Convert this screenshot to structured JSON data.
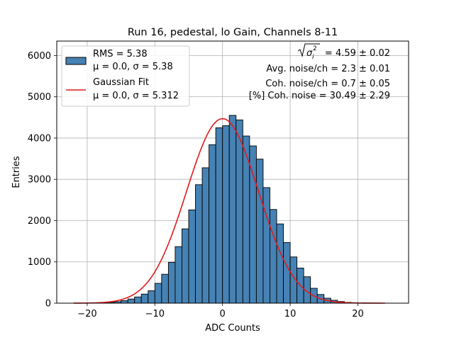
{
  "chart_data": {
    "type": "bar",
    "title": "Run 16, pedestal, lo Gain, Channels 8-11",
    "xlabel": "ADC Counts",
    "ylabel": "Entries",
    "xlim": [
      -24.5,
      27.5
    ],
    "ylim": [
      0,
      6350
    ],
    "xticks": [
      -20,
      -10,
      0,
      10,
      20
    ],
    "xtick_labels": [
      "−20",
      "−10",
      "0",
      "10",
      "20"
    ],
    "yticks": [
      0,
      1000,
      2000,
      3000,
      4000,
      5000,
      6000
    ],
    "ytick_labels": [
      "0",
      "1000",
      "2000",
      "3000",
      "4000",
      "5000",
      "6000"
    ],
    "grid": true,
    "legend_position": "top-left",
    "colors": {
      "histogram": "#4682b4",
      "edge": "#000000",
      "fit": "#e31a1c",
      "grid": "#b0b0b0"
    },
    "histogram": {
      "name_line1": "RMS = 5.38",
      "name_line2": "μ = 0.0, σ = 5.38",
      "bin_edges": [
        -22,
        -21,
        -20,
        -19,
        -18,
        -17,
        -16,
        -15,
        -14,
        -13,
        -12,
        -11,
        -10,
        -9,
        -8,
        -7,
        -6,
        -5,
        -4,
        -3,
        -2,
        -1,
        0,
        1,
        2,
        3,
        4,
        5,
        6,
        7,
        8,
        9,
        10,
        11,
        12,
        13,
        14,
        15,
        16,
        17,
        18,
        19,
        20,
        21,
        22,
        23,
        24,
        25
      ],
      "counts": [
        3,
        4,
        5,
        8,
        12,
        20,
        35,
        60,
        100,
        150,
        220,
        300,
        480,
        700,
        990,
        1370,
        1800,
        2260,
        2870,
        3280,
        3840,
        4250,
        4300,
        4550,
        4440,
        4050,
        3810,
        3490,
        2800,
        2270,
        1920,
        1470,
        1120,
        850,
        640,
        360,
        210,
        120,
        70,
        40,
        20,
        12,
        8,
        5,
        3,
        2,
        1
      ]
    },
    "fit": {
      "name_line1": "Gaussian Fit",
      "name_line2": "μ = 0.0, σ = 5.312",
      "mu": 0.0,
      "sigma": 5.312,
      "amplitude": 4470,
      "x_range": [
        -22,
        24
      ]
    },
    "annotations": {
      "line1_suffix": " = 4.59 ± 0.02",
      "line2": "Avg. noise/ch = 2.3 ± 0.01",
      "line3": "Coh. noise/ch = 0.7 ± 0.05",
      "line4": "[%] Coh. noise = 30.49 ± 2.29"
    }
  }
}
